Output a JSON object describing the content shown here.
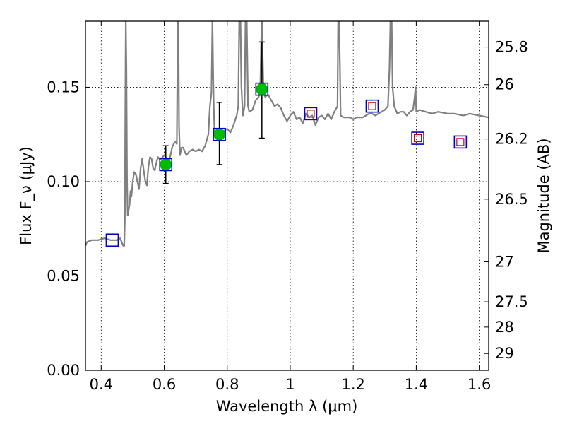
{
  "chart_data": {
    "type": "scatter",
    "xlabel": "Wavelength λ (μm)",
    "ylabel": "Flux F_ν (μJy)",
    "ylabel_right": "Magnitude (AB)",
    "xlim": [
      0.35,
      1.63
    ],
    "ylim": [
      0.0,
      0.185
    ],
    "grid": true,
    "x_ticks": [
      {
        "value": 0.4,
        "label": "0.4"
      },
      {
        "value": 0.6,
        "label": "0.6"
      },
      {
        "value": 0.8,
        "label": "0.8"
      },
      {
        "value": 1.0,
        "label": "1"
      },
      {
        "value": 1.2,
        "label": "1.2"
      },
      {
        "value": 1.4,
        "label": "1.4"
      },
      {
        "value": 1.6,
        "label": "1.6"
      }
    ],
    "y_ticks": [
      {
        "value": 0.0,
        "label": "0.00"
      },
      {
        "value": 0.05,
        "label": "0.05"
      },
      {
        "value": 0.1,
        "label": "0.10"
      },
      {
        "value": 0.15,
        "label": "0.15"
      }
    ],
    "right_ticks": [
      {
        "label": "25.8",
        "flux": 0.1713
      },
      {
        "label": "26",
        "flux": 0.1514
      },
      {
        "label": "26.2",
        "flux": 0.1226
      },
      {
        "label": "26.5",
        "flux": 0.0907
      },
      {
        "label": "27",
        "flux": 0.0575
      },
      {
        "label": "27.5",
        "flux": 0.0363
      },
      {
        "label": "28",
        "flux": 0.0229
      },
      {
        "label": "29",
        "flux": 0.0089
      }
    ],
    "spectrum": {
      "color": "#808080",
      "x": [
        0.35,
        0.355,
        0.37,
        0.39,
        0.41,
        0.43,
        0.45,
        0.46,
        0.47,
        0.473,
        0.475,
        0.476,
        0.478,
        0.48,
        0.482,
        0.484,
        0.486,
        0.488,
        0.49,
        0.493,
        0.496,
        0.5,
        0.505,
        0.51,
        0.515,
        0.52,
        0.525,
        0.53,
        0.535,
        0.54,
        0.545,
        0.55,
        0.555,
        0.56,
        0.565,
        0.57,
        0.575,
        0.58,
        0.585,
        0.59,
        0.595,
        0.6,
        0.605,
        0.61,
        0.615,
        0.62,
        0.625,
        0.63,
        0.635,
        0.64,
        0.643,
        0.645,
        0.647,
        0.65,
        0.655,
        0.66,
        0.67,
        0.68,
        0.69,
        0.7,
        0.71,
        0.72,
        0.73,
        0.74,
        0.745,
        0.75,
        0.753,
        0.755,
        0.757,
        0.76,
        0.77,
        0.78,
        0.79,
        0.8,
        0.81,
        0.82,
        0.83,
        0.835,
        0.838,
        0.84,
        0.842,
        0.845,
        0.85,
        0.855,
        0.858,
        0.86,
        0.862,
        0.866,
        0.87,
        0.88,
        0.89,
        0.9,
        0.905,
        0.908,
        0.91,
        0.912,
        0.915,
        0.92,
        0.93,
        0.94,
        0.95,
        0.96,
        0.97,
        0.98,
        0.99,
        1.0,
        1.01,
        1.02,
        1.03,
        1.04,
        1.05,
        1.06,
        1.07,
        1.08,
        1.09,
        1.1,
        1.11,
        1.12,
        1.13,
        1.14,
        1.15,
        1.152,
        1.155,
        1.158,
        1.16,
        1.17,
        1.18,
        1.19,
        1.2,
        1.21,
        1.22,
        1.23,
        1.24,
        1.25,
        1.26,
        1.27,
        1.28,
        1.3,
        1.31,
        1.315,
        1.318,
        1.32,
        1.322,
        1.325,
        1.33,
        1.34,
        1.35,
        1.36,
        1.37,
        1.38,
        1.39,
        1.395,
        1.398,
        1.4,
        1.41,
        1.43,
        1.45,
        1.47,
        1.5,
        1.52,
        1.55,
        1.57,
        1.6,
        1.63
      ],
      "y": [
        0.066,
        0.068,
        0.069,
        0.069,
        0.07,
        0.069,
        0.069,
        0.07,
        0.066,
        0.066,
        0.08,
        0.12,
        0.185,
        0.16,
        0.1,
        0.082,
        0.084,
        0.086,
        0.088,
        0.095,
        0.092,
        0.1,
        0.105,
        0.104,
        0.1,
        0.096,
        0.107,
        0.112,
        0.106,
        0.1,
        0.098,
        0.108,
        0.113,
        0.112,
        0.107,
        0.106,
        0.11,
        0.113,
        0.112,
        0.112,
        0.113,
        0.114,
        0.113,
        0.112,
        0.111,
        0.114,
        0.118,
        0.12,
        0.121,
        0.12,
        0.185,
        0.185,
        0.13,
        0.114,
        0.118,
        0.118,
        0.114,
        0.116,
        0.117,
        0.116,
        0.117,
        0.116,
        0.119,
        0.125,
        0.14,
        0.147,
        0.185,
        0.16,
        0.14,
        0.125,
        0.126,
        0.124,
        0.127,
        0.128,
        0.126,
        0.13,
        0.135,
        0.14,
        0.185,
        0.185,
        0.185,
        0.15,
        0.135,
        0.14,
        0.185,
        0.185,
        0.185,
        0.14,
        0.137,
        0.138,
        0.143,
        0.145,
        0.15,
        0.175,
        0.185,
        0.17,
        0.15,
        0.145,
        0.146,
        0.143,
        0.14,
        0.141,
        0.139,
        0.135,
        0.132,
        0.135,
        0.137,
        0.133,
        0.134,
        0.131,
        0.136,
        0.134,
        0.135,
        0.13,
        0.134,
        0.135,
        0.133,
        0.136,
        0.133,
        0.137,
        0.14,
        0.185,
        0.185,
        0.16,
        0.135,
        0.134,
        0.134,
        0.134,
        0.133,
        0.134,
        0.134,
        0.134,
        0.135,
        0.136,
        0.136,
        0.135,
        0.136,
        0.138,
        0.14,
        0.16,
        0.185,
        0.185,
        0.185,
        0.15,
        0.14,
        0.136,
        0.137,
        0.137,
        0.135,
        0.137,
        0.138,
        0.145,
        0.15,
        0.137,
        0.138,
        0.137,
        0.136,
        0.137,
        0.136,
        0.136,
        0.135,
        0.136,
        0.135,
        0.134
      ],
      "clip": true
    },
    "filled_points": {
      "color": "#00bb00",
      "x": [
        0.605,
        0.775,
        0.91
      ],
      "y": [
        0.109,
        0.125,
        0.149
      ],
      "yerr_low": [
        0.099,
        0.109,
        0.123
      ],
      "yerr_high": [
        0.119,
        0.142,
        0.174
      ]
    },
    "model_boxes": {
      "color": "#0000cc",
      "x": [
        0.435,
        0.605,
        0.775,
        0.91,
        1.065,
        1.26,
        1.405,
        1.54
      ],
      "y": [
        0.069,
        0.109,
        0.125,
        0.149,
        0.136,
        0.14,
        0.123,
        0.121
      ]
    },
    "open_points": {
      "color": "#cc0000",
      "x": [
        1.065,
        1.26,
        1.405,
        1.54
      ],
      "y": [
        0.136,
        0.14,
        0.123,
        0.121
      ]
    }
  }
}
